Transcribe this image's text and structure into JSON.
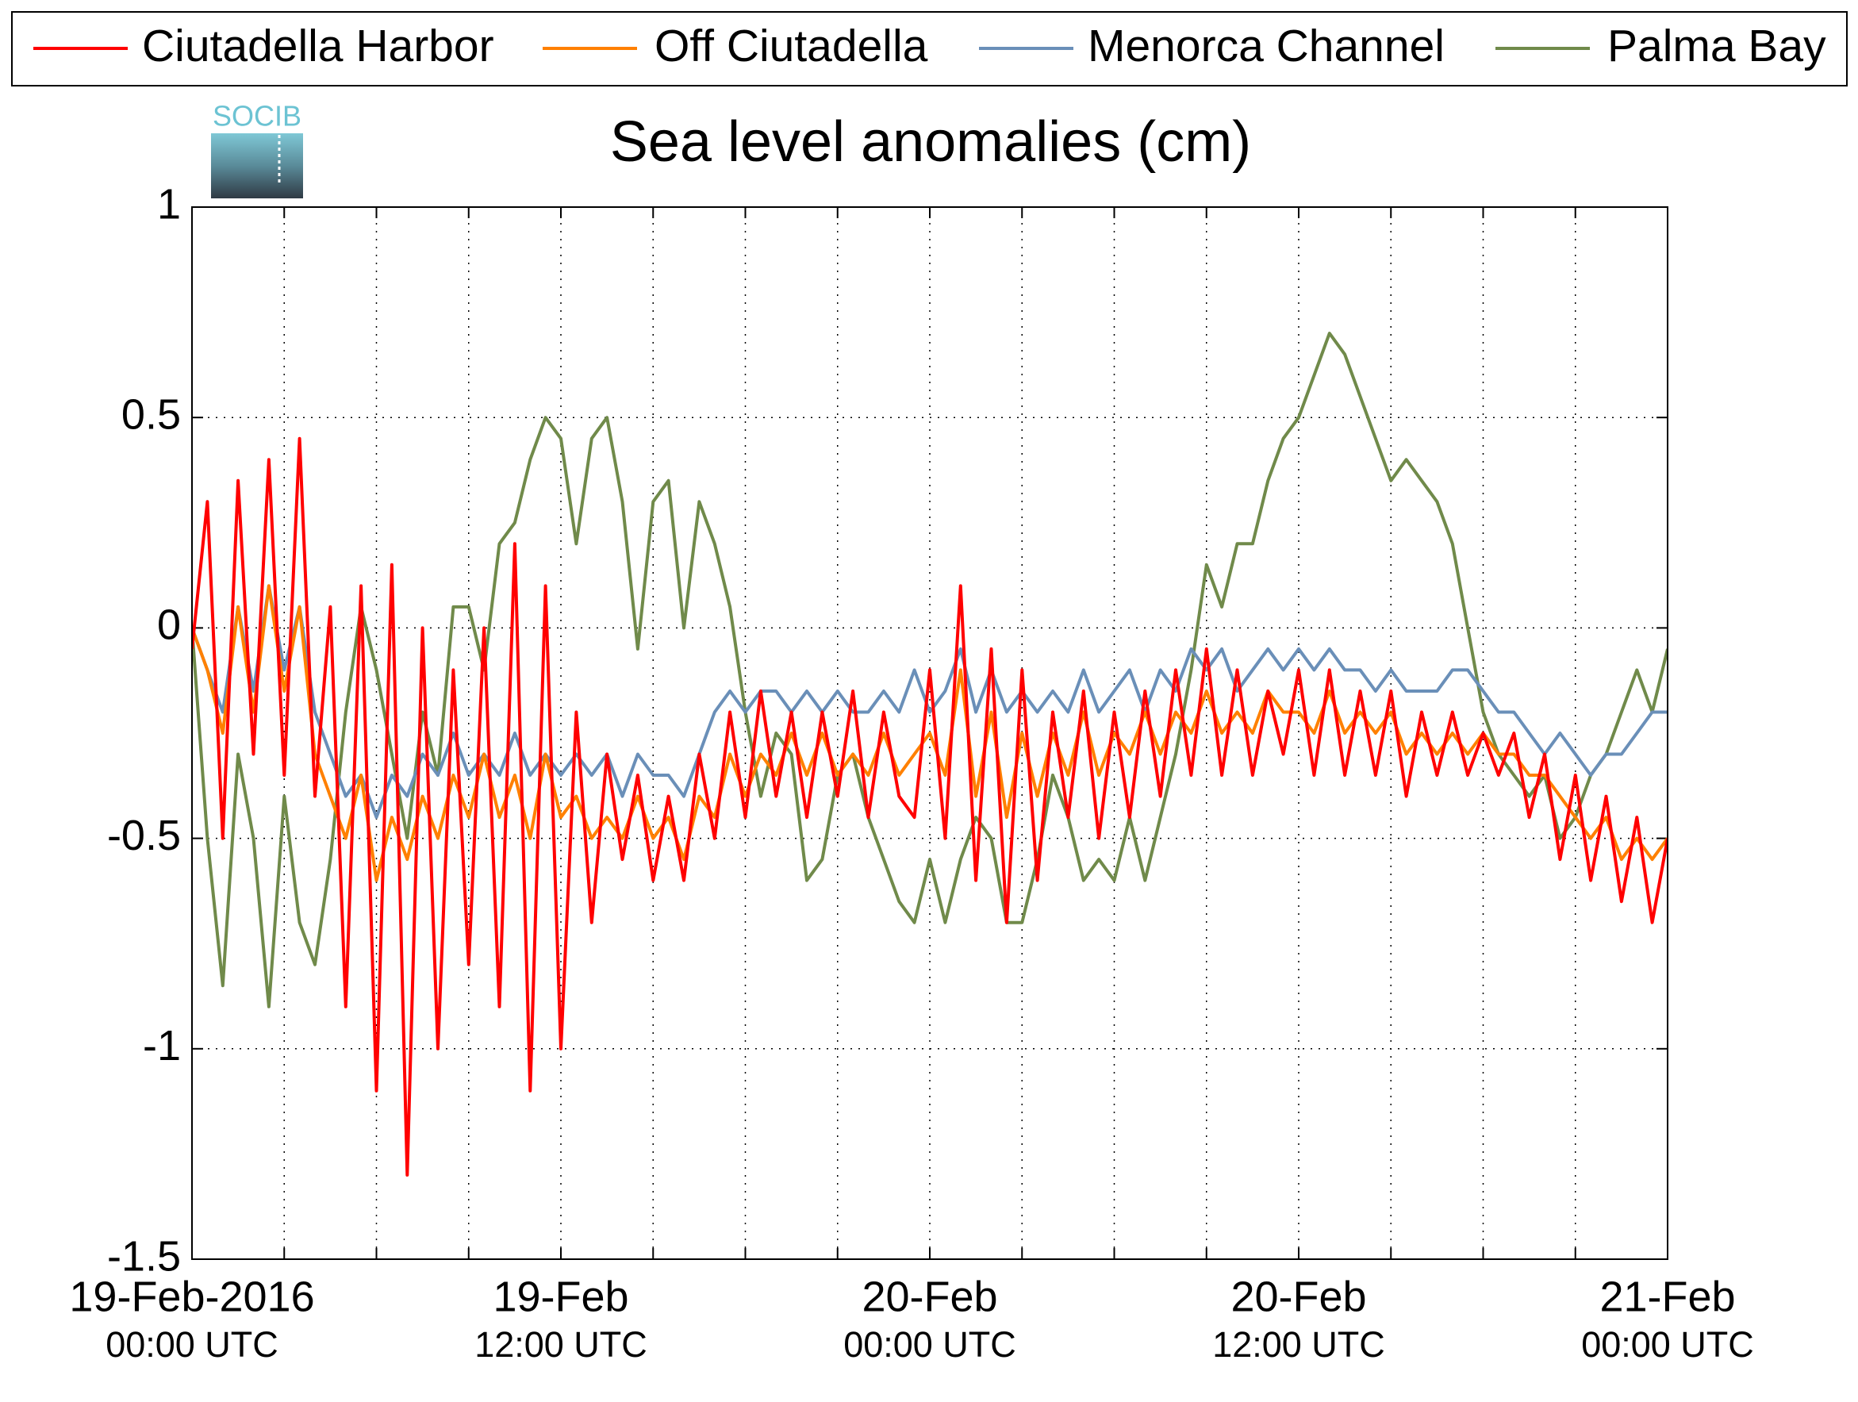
{
  "chart_data": {
    "type": "line",
    "title": "Sea level anomalies (cm)",
    "logo": "SOCIB",
    "x": [
      0,
      0.5,
      1,
      1.5,
      2,
      2.5,
      3,
      3.5,
      4,
      4.5,
      5,
      5.5,
      6,
      6.5,
      7,
      7.5,
      8,
      8.5,
      9,
      9.5,
      10,
      10.5,
      11,
      11.5,
      12,
      12.5,
      13,
      13.5,
      14,
      14.5,
      15,
      15.5,
      16,
      16.5,
      17,
      17.5,
      18,
      18.5,
      19,
      19.5,
      20,
      20.5,
      21,
      21.5,
      22,
      22.5,
      23,
      23.5,
      24,
      24.5,
      25,
      25.5,
      26,
      26.5,
      27,
      27.5,
      28,
      28.5,
      29,
      29.5,
      30,
      30.5,
      31,
      31.5,
      32,
      32.5,
      33,
      33.5,
      34,
      34.5,
      35,
      35.5,
      36,
      36.5,
      37,
      37.5,
      38,
      38.5,
      39,
      39.5,
      40,
      40.5,
      41,
      41.5,
      42,
      42.5,
      43,
      43.5,
      44,
      44.5,
      45,
      45.5,
      46,
      46.5,
      47,
      47.5,
      48
    ],
    "series": [
      {
        "name": "Ciutadella Harbor",
        "color": "#ff0000",
        "values": [
          -0.05,
          0.3,
          -0.5,
          0.35,
          -0.3,
          0.4,
          -0.35,
          0.45,
          -0.4,
          0.05,
          -0.9,
          0.1,
          -1.1,
          0.15,
          -1.3,
          0.0,
          -1.0,
          -0.1,
          -0.8,
          0.0,
          -0.9,
          0.2,
          -1.1,
          0.1,
          -1.0,
          -0.2,
          -0.7,
          -0.3,
          -0.55,
          -0.35,
          -0.6,
          -0.4,
          -0.6,
          -0.3,
          -0.5,
          -0.2,
          -0.45,
          -0.15,
          -0.4,
          -0.2,
          -0.45,
          -0.2,
          -0.4,
          -0.15,
          -0.45,
          -0.2,
          -0.4,
          -0.45,
          -0.1,
          -0.5,
          0.1,
          -0.6,
          -0.05,
          -0.7,
          -0.1,
          -0.6,
          -0.2,
          -0.45,
          -0.15,
          -0.5,
          -0.2,
          -0.45,
          -0.15,
          -0.4,
          -0.1,
          -0.35,
          -0.05,
          -0.35,
          -0.1,
          -0.35,
          -0.15,
          -0.3,
          -0.1,
          -0.35,
          -0.1,
          -0.35,
          -0.15,
          -0.35,
          -0.15,
          -0.4,
          -0.2,
          -0.35,
          -0.2,
          -0.35,
          -0.25,
          -0.35,
          -0.25,
          -0.45,
          -0.3,
          -0.55,
          -0.35,
          -0.6,
          -0.4,
          -0.65,
          -0.45,
          -0.7,
          -0.5
        ]
      },
      {
        "name": "Off Ciutadella",
        "color": "#ff8000",
        "values": [
          0.0,
          -0.1,
          -0.25,
          0.05,
          -0.2,
          0.1,
          -0.15,
          0.05,
          -0.3,
          -0.4,
          -0.5,
          -0.35,
          -0.6,
          -0.45,
          -0.55,
          -0.4,
          -0.5,
          -0.35,
          -0.45,
          -0.3,
          -0.45,
          -0.35,
          -0.5,
          -0.3,
          -0.45,
          -0.4,
          -0.5,
          -0.45,
          -0.5,
          -0.4,
          -0.5,
          -0.45,
          -0.55,
          -0.4,
          -0.45,
          -0.3,
          -0.4,
          -0.3,
          -0.35,
          -0.25,
          -0.35,
          -0.25,
          -0.35,
          -0.3,
          -0.35,
          -0.25,
          -0.35,
          -0.3,
          -0.25,
          -0.35,
          -0.1,
          -0.4,
          -0.2,
          -0.45,
          -0.25,
          -0.4,
          -0.25,
          -0.35,
          -0.2,
          -0.35,
          -0.25,
          -0.3,
          -0.2,
          -0.3,
          -0.2,
          -0.25,
          -0.15,
          -0.25,
          -0.2,
          -0.25,
          -0.15,
          -0.2,
          -0.2,
          -0.25,
          -0.15,
          -0.25,
          -0.2,
          -0.25,
          -0.2,
          -0.3,
          -0.25,
          -0.3,
          -0.25,
          -0.3,
          -0.25,
          -0.3,
          -0.3,
          -0.35,
          -0.35,
          -0.4,
          -0.45,
          -0.5,
          -0.45,
          -0.55,
          -0.5,
          -0.55,
          -0.5
        ]
      },
      {
        "name": "Menorca Channel",
        "color": "#6a8fb8",
        "values": [
          0.0,
          -0.1,
          -0.2,
          0.05,
          -0.15,
          0.1,
          -0.1,
          0.05,
          -0.2,
          -0.3,
          -0.4,
          -0.35,
          -0.45,
          -0.35,
          -0.4,
          -0.3,
          -0.35,
          -0.25,
          -0.35,
          -0.3,
          -0.35,
          -0.25,
          -0.35,
          -0.3,
          -0.35,
          -0.3,
          -0.35,
          -0.3,
          -0.4,
          -0.3,
          -0.35,
          -0.35,
          -0.4,
          -0.3,
          -0.2,
          -0.15,
          -0.2,
          -0.15,
          -0.15,
          -0.2,
          -0.15,
          -0.2,
          -0.15,
          -0.2,
          -0.2,
          -0.15,
          -0.2,
          -0.1,
          -0.2,
          -0.15,
          -0.05,
          -0.2,
          -0.1,
          -0.2,
          -0.15,
          -0.2,
          -0.15,
          -0.2,
          -0.1,
          -0.2,
          -0.15,
          -0.1,
          -0.2,
          -0.1,
          -0.15,
          -0.05,
          -0.1,
          -0.05,
          -0.15,
          -0.1,
          -0.05,
          -0.1,
          -0.05,
          -0.1,
          -0.05,
          -0.1,
          -0.1,
          -0.15,
          -0.1,
          -0.15,
          -0.15,
          -0.15,
          -0.1,
          -0.1,
          -0.15,
          -0.2,
          -0.2,
          -0.25,
          -0.3,
          -0.25,
          -0.3,
          -0.35,
          -0.3,
          -0.3,
          -0.25,
          -0.2,
          -0.2
        ]
      },
      {
        "name": "Palma Bay",
        "color": "#708a4a",
        "values": [
          0.0,
          -0.5,
          -0.85,
          -0.3,
          -0.5,
          -0.9,
          -0.4,
          -0.7,
          -0.8,
          -0.55,
          -0.2,
          0.05,
          -0.1,
          -0.3,
          -0.5,
          -0.2,
          -0.35,
          0.05,
          0.05,
          -0.1,
          0.2,
          0.25,
          0.4,
          0.5,
          0.45,
          0.2,
          0.45,
          0.5,
          0.3,
          -0.05,
          0.3,
          0.35,
          0.0,
          0.3,
          0.2,
          0.05,
          -0.2,
          -0.4,
          -0.25,
          -0.3,
          -0.6,
          -0.55,
          -0.35,
          -0.3,
          -0.45,
          -0.55,
          -0.65,
          -0.7,
          -0.55,
          -0.7,
          -0.55,
          -0.45,
          -0.5,
          -0.7,
          -0.7,
          -0.55,
          -0.35,
          -0.45,
          -0.6,
          -0.55,
          -0.6,
          -0.45,
          -0.6,
          -0.45,
          -0.3,
          -0.1,
          0.15,
          0.05,
          0.2,
          0.2,
          0.35,
          0.45,
          0.5,
          0.6,
          0.7,
          0.65,
          0.55,
          0.45,
          0.35,
          0.4,
          0.35,
          0.3,
          0.2,
          0.0,
          -0.2,
          -0.3,
          -0.35,
          -0.4,
          -0.35,
          -0.5,
          -0.45,
          -0.35,
          -0.3,
          -0.2,
          -0.1,
          -0.2,
          -0.05
        ]
      }
    ],
    "xlim": [
      0,
      48
    ],
    "xticks": [
      {
        "value": 0,
        "label": "19-Feb-2016",
        "sublabel": "00:00 UTC"
      },
      {
        "value": 12,
        "label": "19-Feb",
        "sublabel": "12:00 UTC"
      },
      {
        "value": 24,
        "label": "20-Feb",
        "sublabel": "00:00 UTC"
      },
      {
        "value": 36,
        "label": "20-Feb",
        "sublabel": "12:00 UTC"
      },
      {
        "value": 48,
        "label": "21-Feb",
        "sublabel": "00:00 UTC"
      }
    ],
    "x_grid": [
      3,
      6,
      9,
      15,
      18,
      21,
      27,
      30,
      33,
      39,
      42,
      45
    ],
    "ylim": [
      -1.5,
      1
    ],
    "yticks": [
      1,
      0.5,
      0,
      -0.5,
      -1,
      -1.5
    ],
    "grid": true,
    "legend": "top"
  }
}
